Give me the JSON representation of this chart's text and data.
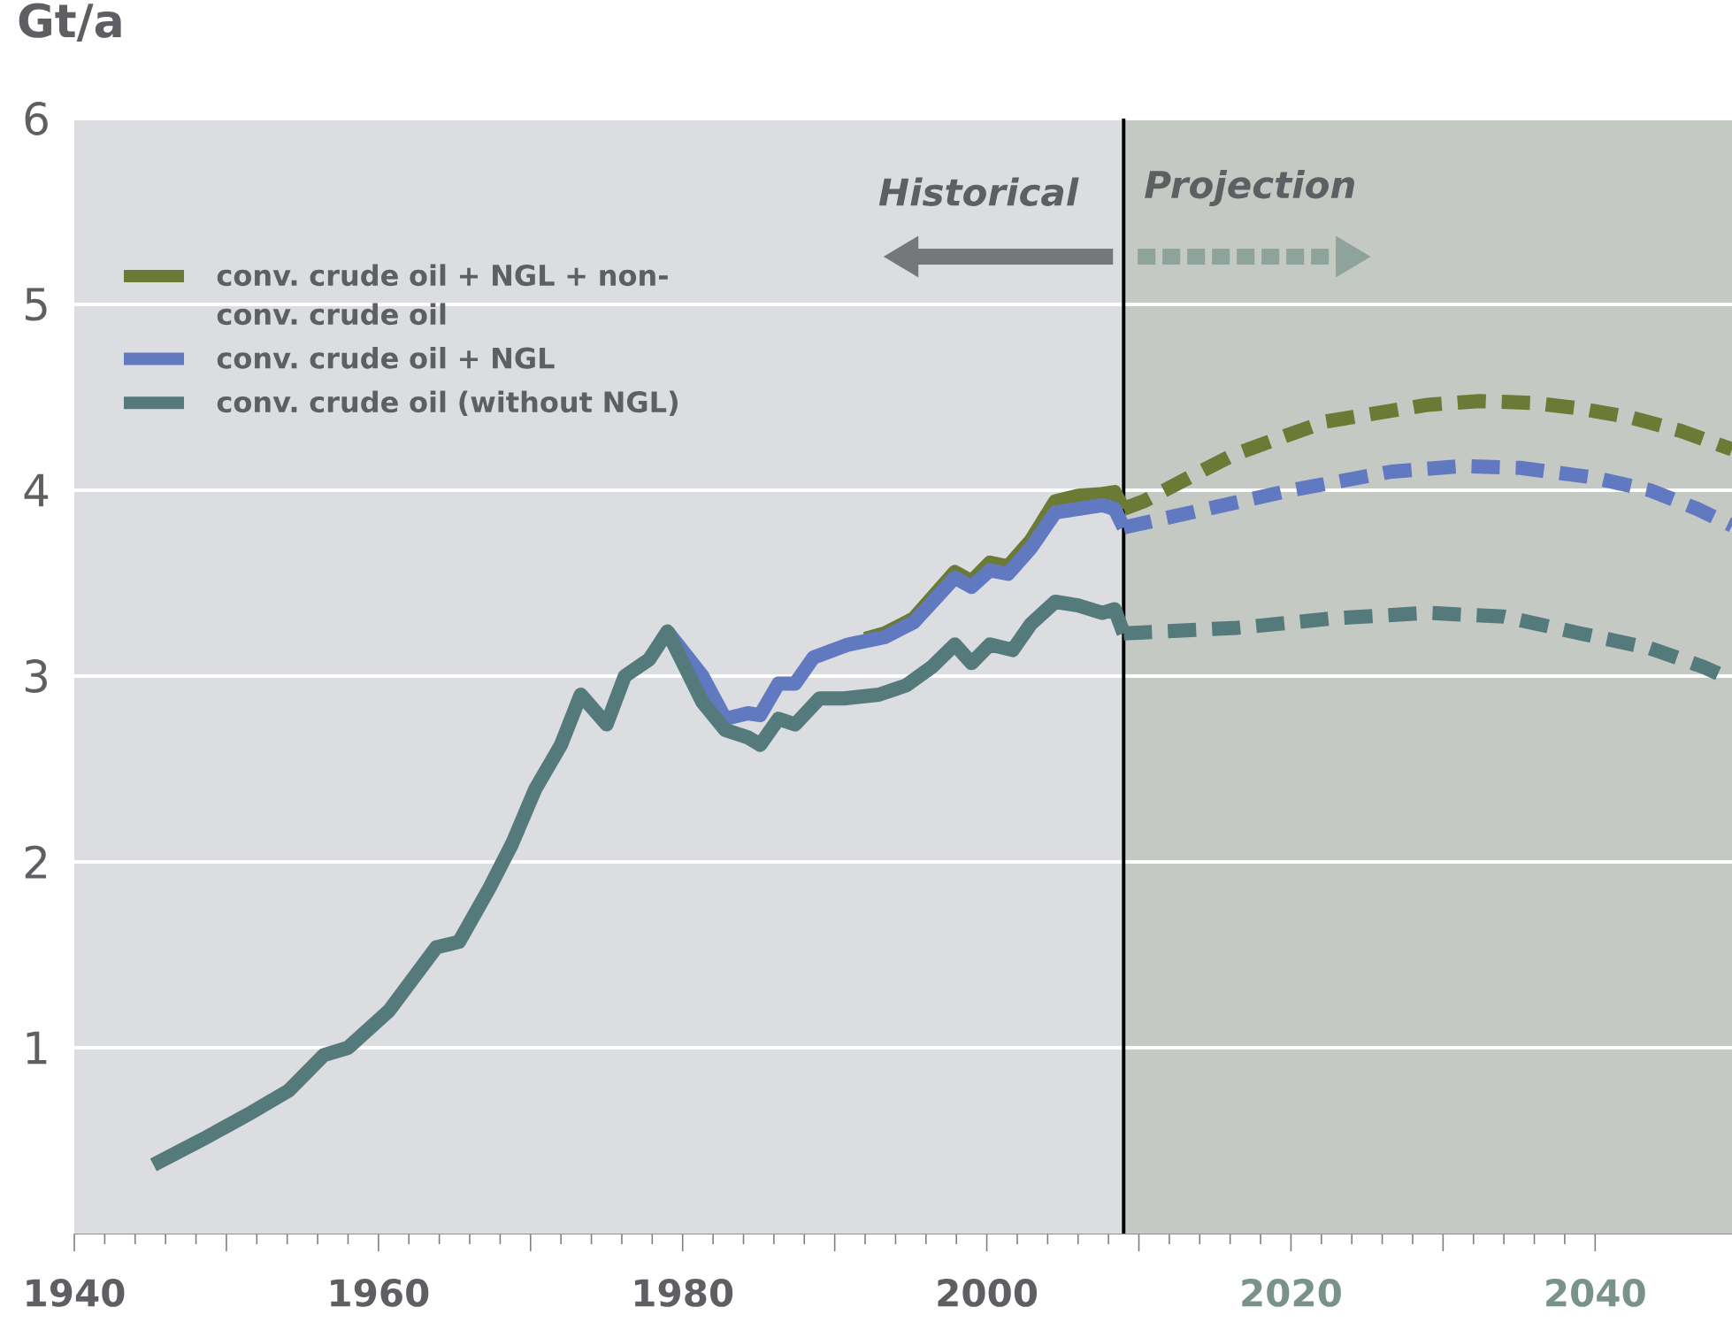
{
  "chart_data": {
    "type": "line",
    "ylabel": "Gt/a",
    "xlim": [
      1940,
      2049
    ],
    "ylim": [
      0,
      6
    ],
    "xticks": [
      1940,
      {
        "value": 1950,
        "label": null
      },
      1960,
      {
        "value": 1970,
        "label": null
      },
      1980,
      {
        "value": 1990,
        "label": null
      },
      2000,
      {
        "value": 2010,
        "label": null
      },
      2020,
      {
        "value": 2030,
        "label": null
      },
      2040
    ],
    "yticks": [
      1,
      2,
      3,
      4,
      5,
      6
    ],
    "grid": "y",
    "legend": "top left",
    "line_style": "solid",
    "marker": "none",
    "annotations": [
      "Historical",
      "Projection"
    ],
    "ref_lines": [
      {
        "axis": "x",
        "value": 2009,
        "color": "#000000"
      }
    ],
    "bands": [
      {
        "axis": "x",
        "from": 1940,
        "to": 2009,
        "color": "#dcdde0"
      },
      {
        "axis": "x",
        "from": 2009,
        "to": 2049,
        "color": "#c5c9c4"
      }
    ],
    "series": [
      {
        "name": "conv. crude oil + NGL + non-conv. crude oil",
        "color": "#6b7a35",
        "x": [
          1992,
          1993.3,
          1995.2,
          1997.9,
          1999,
          2000.2,
          2001.4,
          2002.9,
          2004.5,
          2006,
          2007.6,
          2008.4,
          2009
        ],
        "values": [
          3.2,
          3.23,
          3.31,
          3.56,
          3.51,
          3.61,
          3.59,
          3.73,
          3.94,
          3.97,
          3.98,
          3.99,
          3.9
        ]
      },
      {
        "name": "conv. crude oil + NGL",
        "color": "#6079c1",
        "x": [
          1979,
          1981.3,
          1982.8,
          1984.3,
          1985.1,
          1986.3,
          1987.4,
          1988.6,
          1990.9,
          1993.3,
          1995.2,
          1997.9,
          1999,
          2000.2,
          2001.4,
          2002.9,
          2004.5,
          2006,
          2007.6,
          2008.4,
          2009
        ],
        "values": [
          3.24,
          3.0,
          2.77,
          2.8,
          2.79,
          2.96,
          2.96,
          3.1,
          3.17,
          3.21,
          3.29,
          3.53,
          3.48,
          3.57,
          3.55,
          3.69,
          3.88,
          3.9,
          3.92,
          3.9,
          3.8
        ]
      },
      {
        "name": "conv. crude oil (without NGL)",
        "color": "#557a7c",
        "x": [
          1945.2,
          1948.5,
          1951.4,
          1954.1,
          1956.4,
          1958,
          1960.7,
          1963.8,
          1965.3,
          1967.3,
          1968.8,
          1970.3,
          1972,
          1973.3,
          1975,
          1976.2,
          1977.8,
          1979,
          1981.3,
          1982.8,
          1984.3,
          1985.1,
          1986.3,
          1987.4,
          1989,
          1990.6,
          1992.9,
          1994.7,
          1996.4,
          1997.9,
          1999,
          2000.2,
          2001.7,
          2002.9,
          2004.5,
          2006,
          2007.6,
          2008.4,
          2009
        ],
        "values": [
          0.37,
          0.51,
          0.64,
          0.77,
          0.96,
          1.0,
          1.2,
          1.54,
          1.57,
          1.86,
          2.1,
          2.39,
          2.63,
          2.9,
          2.74,
          3.0,
          3.09,
          3.24,
          2.86,
          2.71,
          2.67,
          2.63,
          2.77,
          2.74,
          2.88,
          2.88,
          2.9,
          2.95,
          3.05,
          3.17,
          3.07,
          3.17,
          3.14,
          3.28,
          3.4,
          3.38,
          3.34,
          3.36,
          3.23
        ]
      },
      {
        "color": "#6b7a35",
        "line_style": "dashed",
        "x": [
          2009,
          2010.3,
          2013.8,
          2016.2,
          2019.2,
          2022.3,
          2029,
          2032.4,
          2035.9,
          2039,
          2042.4,
          2045.6,
          2049
        ],
        "values": [
          3.9,
          3.94,
          4.09,
          4.19,
          4.28,
          4.37,
          4.46,
          4.48,
          4.47,
          4.44,
          4.39,
          4.32,
          4.22
        ]
      },
      {
        "color": "#6079c1",
        "line_style": "dashed",
        "x": [
          2009,
          2013.4,
          2020,
          2026.6,
          2031.3,
          2035.1,
          2039.8,
          2043.6,
          2046.7,
          2049
        ],
        "values": [
          3.8,
          3.88,
          4.0,
          4.1,
          4.13,
          4.12,
          4.07,
          4.0,
          3.9,
          3.81
        ]
      },
      {
        "color": "#557a7c",
        "line_style": "dashed",
        "x": [
          2009,
          2016.5,
          2022.7,
          2029,
          2034,
          2039,
          2043.6,
          2047.1,
          2049
        ],
        "values": [
          3.23,
          3.26,
          3.31,
          3.34,
          3.32,
          3.23,
          3.15,
          3.05,
          2.98
        ]
      }
    ]
  }
}
